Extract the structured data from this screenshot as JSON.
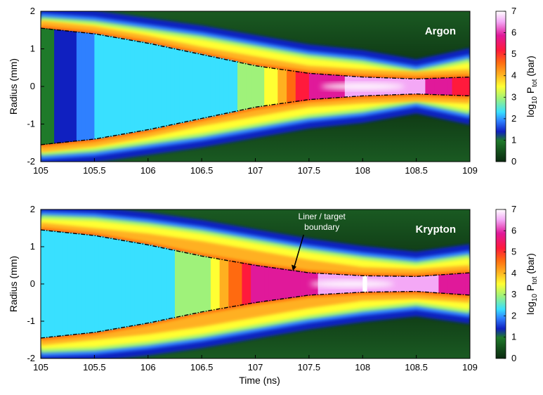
{
  "colors": {
    "colormap": [
      "#0b2a10",
      "#1f7a2a",
      "#1020c0",
      "#2f80ff",
      "#39e0ff",
      "#9ff27a",
      "#ffff33",
      "#ffb020",
      "#ff6a10",
      "#ff1a3c",
      "#e0199a",
      "#f4a8f6",
      "#ffffff"
    ],
    "boundary_line": "#000000"
  },
  "chart_data": [
    {
      "type": "heatmap",
      "panel": "Argon",
      "label": "Argon",
      "xlim": [
        105,
        109
      ],
      "ylim": [
        -2,
        2
      ],
      "x_ticks": [
        "105",
        "105.5",
        "106",
        "106.5",
        "107",
        "107.5",
        "108",
        "108.5",
        "109"
      ],
      "y_ticks": [
        "2",
        "1",
        "0",
        "-1",
        "-2"
      ],
      "ylabel": "Radius (mm)",
      "xlabel": "",
      "colorbar": {
        "range": [
          0,
          7
        ],
        "ticks": [
          "7",
          "6",
          "5",
          "4",
          "3",
          "2",
          "1",
          "0"
        ],
        "label": "log10 P_tot (bar)"
      },
      "liner_target_boundary": {
        "x": [
          105,
          105.5,
          106,
          106.5,
          107,
          107.5,
          108,
          108.5,
          109
        ],
        "r": [
          1.55,
          1.4,
          1.15,
          0.85,
          0.55,
          0.35,
          0.25,
          0.2,
          0.25
        ]
      },
      "outer_boundary": {
        "x": [
          105,
          105.5,
          106,
          106.5,
          107,
          107.5,
          108,
          108.5,
          109
        ],
        "r": [
          2.0,
          1.9,
          1.7,
          1.5,
          1.25,
          1.0,
          0.85,
          0.6,
          0.9
        ]
      },
      "core_log10_pressure": {
        "x": [
          105,
          105.5,
          106,
          106.5,
          107,
          107.5,
          108,
          108.5,
          109
        ],
        "values": [
          1.2,
          2.3,
          2.5,
          2.7,
          3.0,
          6.0,
          6.8,
          6.6,
          5.5
        ]
      }
    },
    {
      "type": "heatmap",
      "panel": "Krypton",
      "label": "Krypton",
      "annotation": [
        "Liner / target",
        "boundary"
      ],
      "xlim": [
        105,
        109
      ],
      "ylim": [
        -2,
        2
      ],
      "x_ticks": [
        "105",
        "105.5",
        "106",
        "106.5",
        "107",
        "107.5",
        "108",
        "108.5",
        "109"
      ],
      "y_ticks": [
        "2",
        "1",
        "0",
        "-1",
        "-2"
      ],
      "ylabel": "Radius (mm)",
      "xlabel": "Time (ns)",
      "colorbar": {
        "range": [
          0,
          7
        ],
        "ticks": [
          "7",
          "6",
          "5",
          "4",
          "3",
          "2",
          "1",
          "0"
        ],
        "label": "log10 P_tot (bar)"
      },
      "liner_target_boundary": {
        "x": [
          105,
          105.5,
          106,
          106.5,
          107,
          107.5,
          108,
          108.5,
          109
        ],
        "r": [
          1.45,
          1.3,
          1.05,
          0.75,
          0.5,
          0.3,
          0.22,
          0.2,
          0.3
        ]
      },
      "outer_boundary": {
        "x": [
          105,
          105.5,
          106,
          106.5,
          107,
          107.5,
          108,
          108.5,
          109
        ],
        "r": [
          2.0,
          1.95,
          1.8,
          1.6,
          1.35,
          1.1,
          0.9,
          0.75,
          0.95
        ]
      },
      "core_log10_pressure": {
        "x": [
          105,
          105.5,
          106,
          106.5,
          107,
          107.5,
          108,
          108.5,
          109
        ],
        "values": [
          2.8,
          2.8,
          2.8,
          3.0,
          6.2,
          6.4,
          7.0,
          6.8,
          6.0
        ]
      }
    }
  ]
}
